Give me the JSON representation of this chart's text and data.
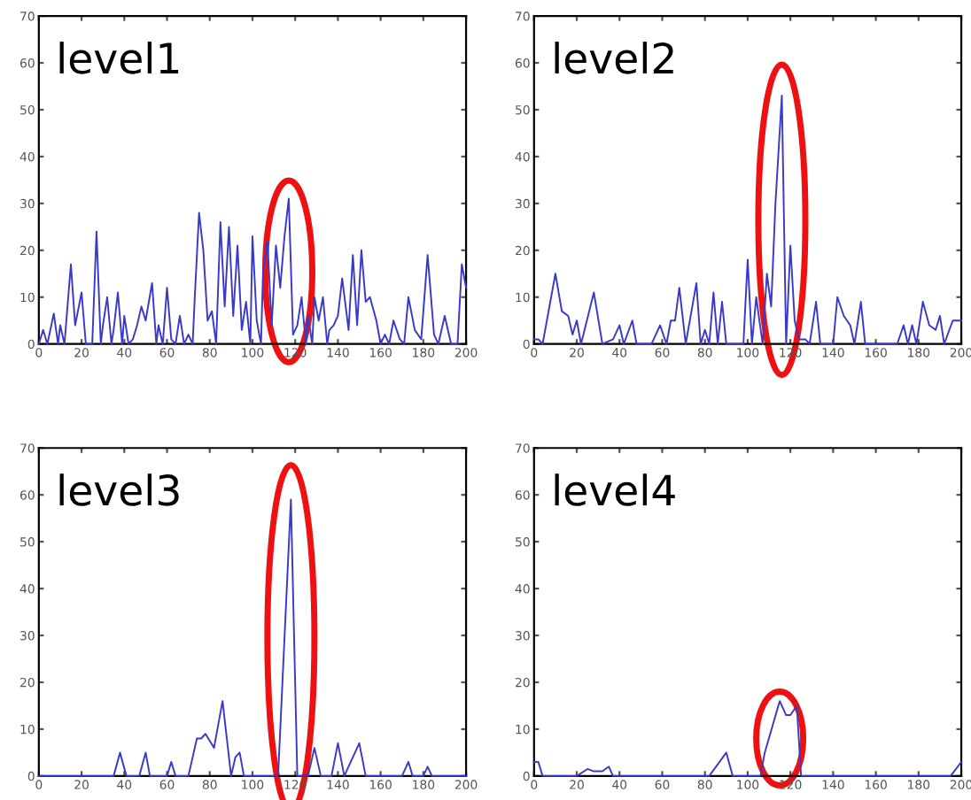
{
  "chart_data": [
    {
      "type": "line",
      "title": "level1",
      "xlim": [
        0,
        200
      ],
      "ylim": [
        0,
        70
      ],
      "xticks": [
        0,
        20,
        40,
        60,
        80,
        100,
        120,
        140,
        160,
        180,
        200
      ],
      "yticks": [
        0,
        10,
        20,
        30,
        40,
        50,
        60,
        70
      ],
      "grid": false,
      "legend": false,
      "series": [
        {
          "color": "#3a3ac8",
          "x": [
            0,
            2,
            4,
            7,
            9,
            10,
            12,
            15,
            17,
            20,
            22,
            25,
            27,
            29,
            30,
            32,
            34,
            35,
            37,
            39,
            40,
            42,
            44,
            46,
            48,
            50,
            53,
            55,
            56,
            58,
            60,
            62,
            64,
            66,
            68,
            70,
            72,
            73,
            75,
            77,
            79,
            81,
            83,
            85,
            87,
            89,
            91,
            93,
            95,
            97,
            99,
            100,
            102,
            104,
            105,
            107,
            109,
            111,
            113,
            115,
            117,
            119,
            121,
            123,
            125,
            126,
            128,
            129,
            131,
            133,
            135,
            136,
            138,
            140,
            142,
            145,
            147,
            149,
            151,
            153,
            155,
            158,
            160,
            162,
            164,
            166,
            169,
            171,
            173,
            176,
            179,
            182,
            185,
            187,
            190,
            193,
            196,
            198,
            200
          ],
          "values": [
            0,
            3,
            0,
            6.5,
            0,
            4,
            0,
            17,
            4,
            11,
            0,
            0,
            24,
            0,
            4,
            10,
            0,
            3,
            11,
            0,
            6,
            0,
            1,
            4,
            8,
            5,
            13,
            0,
            4,
            0,
            12,
            1,
            0,
            6,
            0,
            2,
            0,
            10,
            28,
            20,
            5,
            7,
            0,
            26,
            8,
            25,
            6,
            21,
            3,
            9,
            0,
            23,
            5,
            0,
            16,
            22,
            4,
            21,
            12,
            23,
            31,
            2,
            4,
            10,
            0,
            6,
            0,
            10,
            5,
            10,
            0,
            3,
            4,
            6,
            14,
            3,
            19,
            4,
            20,
            9,
            10,
            5,
            0,
            2,
            0,
            5,
            1,
            0,
            10,
            3,
            1,
            19,
            2,
            0,
            6,
            0,
            0,
            17,
            12
          ]
        }
      ]
    },
    {
      "type": "line",
      "title": "level2",
      "xlim": [
        0,
        200
      ],
      "ylim": [
        0,
        70
      ],
      "xticks": [
        0,
        20,
        40,
        60,
        80,
        100,
        120,
        140,
        160,
        180,
        200
      ],
      "yticks": [
        0,
        10,
        20,
        30,
        40,
        50,
        60,
        70
      ],
      "grid": false,
      "legend": false,
      "series": [
        {
          "color": "#3a3ac8",
          "x": [
            0,
            2,
            4,
            10,
            13,
            16,
            18,
            20,
            22,
            28,
            32,
            37,
            40,
            42,
            46,
            48,
            55,
            59,
            62,
            64,
            66,
            68,
            71,
            76,
            78,
            80,
            82,
            84,
            86,
            88,
            90,
            98,
            100,
            102,
            104,
            107,
            109,
            111,
            113,
            116,
            118,
            120,
            122,
            124,
            127,
            129,
            132,
            134,
            140,
            142,
            145,
            148,
            150,
            153,
            155,
            170,
            173,
            175,
            177,
            179,
            182,
            185,
            188,
            190,
            192,
            196,
            200
          ],
          "values": [
            1,
            1,
            0,
            15,
            7,
            6,
            2,
            5,
            0,
            11,
            0,
            1,
            4,
            0,
            5,
            0,
            0,
            4,
            0,
            5,
            5,
            12,
            0,
            13,
            0,
            3,
            0,
            11,
            0,
            9,
            0,
            0,
            18,
            0,
            10,
            0,
            15,
            8,
            30,
            53,
            0,
            21,
            5,
            1,
            1,
            0,
            9,
            0,
            0,
            10,
            6,
            4,
            0,
            9,
            0,
            0,
            4,
            0,
            4,
            0,
            9,
            4,
            3,
            6,
            0,
            5,
            5
          ]
        }
      ]
    },
    {
      "type": "line",
      "title": "level3",
      "xlim": [
        0,
        200
      ],
      "ylim": [
        0,
        70
      ],
      "xticks": [
        0,
        20,
        40,
        60,
        80,
        100,
        120,
        140,
        160,
        180,
        200
      ],
      "yticks": [
        0,
        10,
        20,
        30,
        40,
        50,
        60,
        70
      ],
      "grid": false,
      "legend": false,
      "series": [
        {
          "color": "#3a3ac8",
          "x": [
            0,
            35,
            38,
            41,
            47,
            50,
            52,
            60,
            62,
            64,
            70,
            74,
            76,
            78,
            82,
            86,
            90,
            92,
            94,
            96,
            112,
            118,
            121,
            126,
            129,
            132,
            137,
            140,
            143,
            147,
            150,
            153,
            170,
            173,
            175,
            180,
            182,
            184,
            200
          ],
          "values": [
            0,
            0,
            5,
            0,
            0,
            5,
            0,
            0,
            3,
            0,
            0,
            8,
            8,
            9,
            6,
            16,
            0,
            4,
            5,
            0,
            0,
            59,
            0,
            0,
            6,
            0,
            0,
            7,
            0,
            4,
            7,
            0,
            0,
            3,
            0,
            0,
            2,
            0,
            0
          ]
        }
      ]
    },
    {
      "type": "line",
      "title": "level4",
      "xlim": [
        0,
        200
      ],
      "ylim": [
        0,
        70
      ],
      "xticks": [
        0,
        20,
        40,
        60,
        80,
        100,
        120,
        140,
        160,
        180,
        200
      ],
      "yticks": [
        0,
        10,
        20,
        30,
        40,
        50,
        60,
        70
      ],
      "grid": false,
      "legend": false,
      "series": [
        {
          "color": "#3a3ac8",
          "x": [
            0,
            2,
            4,
            20,
            25,
            28,
            32,
            35,
            37,
            82,
            90,
            93,
            106,
            108,
            115,
            118,
            120,
            123,
            125,
            170,
            195,
            200
          ],
          "values": [
            3,
            3,
            0,
            0,
            1.5,
            1,
            1,
            2,
            0,
            0,
            5,
            0,
            0,
            5,
            16,
            13,
            13,
            15,
            0,
            0,
            0,
            3
          ]
        }
      ]
    }
  ]
}
